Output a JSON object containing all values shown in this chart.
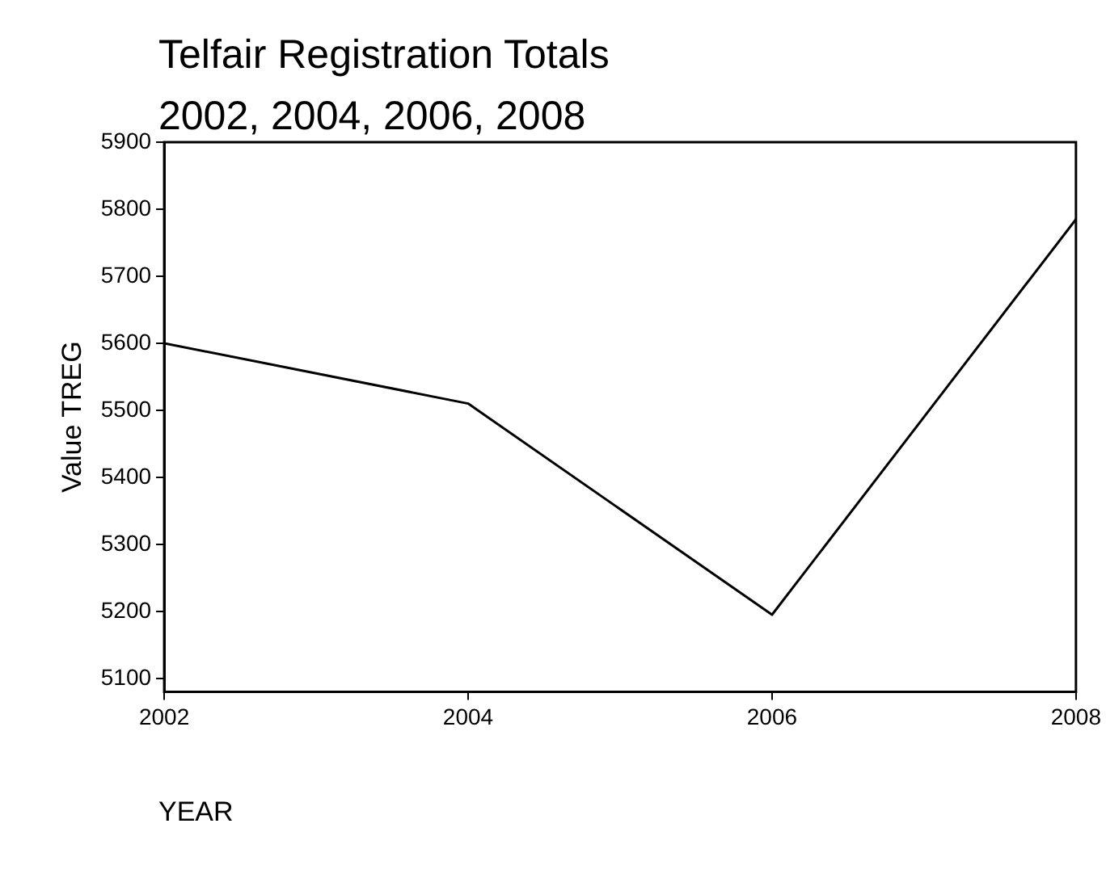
{
  "chart_data": {
    "type": "line",
    "title": "Telfair Registration Totals",
    "subtitle": "2002, 2004, 2006, 2008",
    "xlabel": "YEAR",
    "ylabel": "Value TREG",
    "x": [
      2002,
      2004,
      2006,
      2008
    ],
    "series": [
      {
        "color": "#000000",
        "values": [
          5600,
          5510,
          5195,
          5785
        ]
      }
    ],
    "xlim": [
      2002,
      2008
    ],
    "xticks": [
      2002,
      2004,
      2006,
      2008
    ],
    "ylim": [
      5080,
      5900
    ],
    "yticks": [
      5100,
      5200,
      5300,
      5400,
      5500,
      5600,
      5700,
      5800,
      5900
    ],
    "grid": false,
    "legend": false,
    "marker": "none",
    "line_style": "solid"
  }
}
